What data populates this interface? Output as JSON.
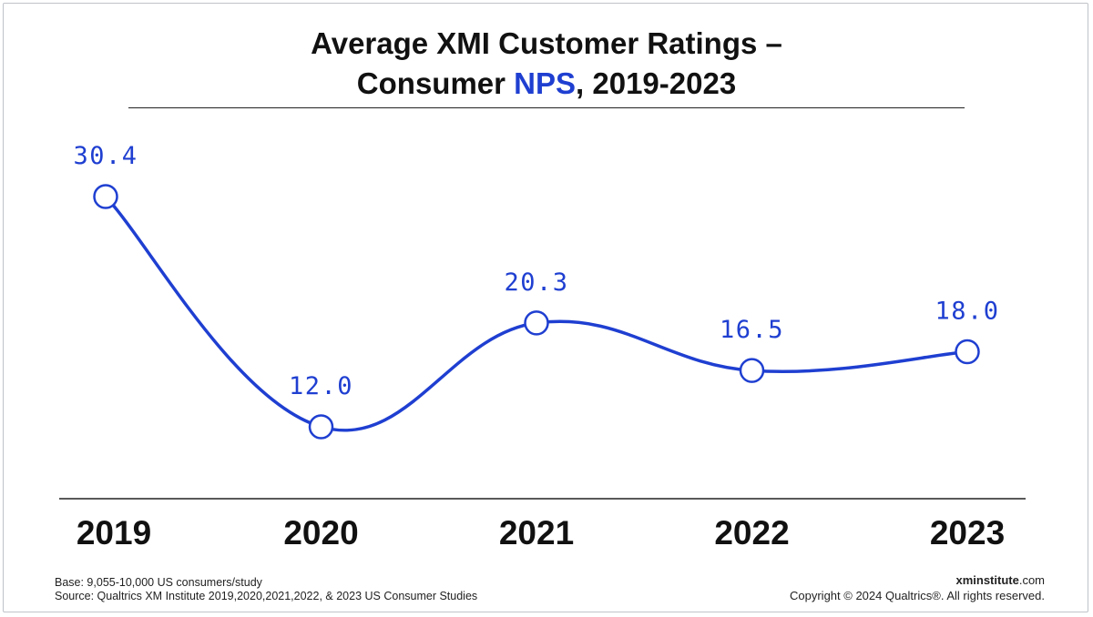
{
  "header": {
    "title_line1": "Average XMI Customer Ratings –",
    "title_line2_prefix": "Consumer ",
    "title_highlight": "NPS",
    "title_line2_suffix": ", 2019-2023"
  },
  "footer": {
    "base": "Base: 9,055-10,000 US consumers/study",
    "source": "Source: Qualtrics XM Institute 2019,2020,2021,2022, & 2023 US Consumer Studies",
    "brand_bold": "xminstitute",
    "brand_suffix": ".com",
    "copyright": "Copyright © 2024 Qualtrics®. All rights reserved."
  },
  "colors": {
    "series": "#1f3fd1",
    "text": "#111111",
    "rule": "#222222"
  },
  "chart_data": {
    "type": "line",
    "title": "Average XMI Customer Ratings – Consumer NPS, 2019-2023",
    "categories": [
      "2019",
      "2020",
      "2021",
      "2022",
      "2023"
    ],
    "series": [
      {
        "name": "Consumer NPS",
        "values": [
          30.4,
          12.0,
          20.3,
          16.5,
          18.0
        ]
      }
    ],
    "data_labels": [
      "30.4",
      "12.0",
      "20.3",
      "16.5",
      "18.0"
    ],
    "xlabel": "",
    "ylabel": "",
    "grid": false,
    "smooth": true
  }
}
